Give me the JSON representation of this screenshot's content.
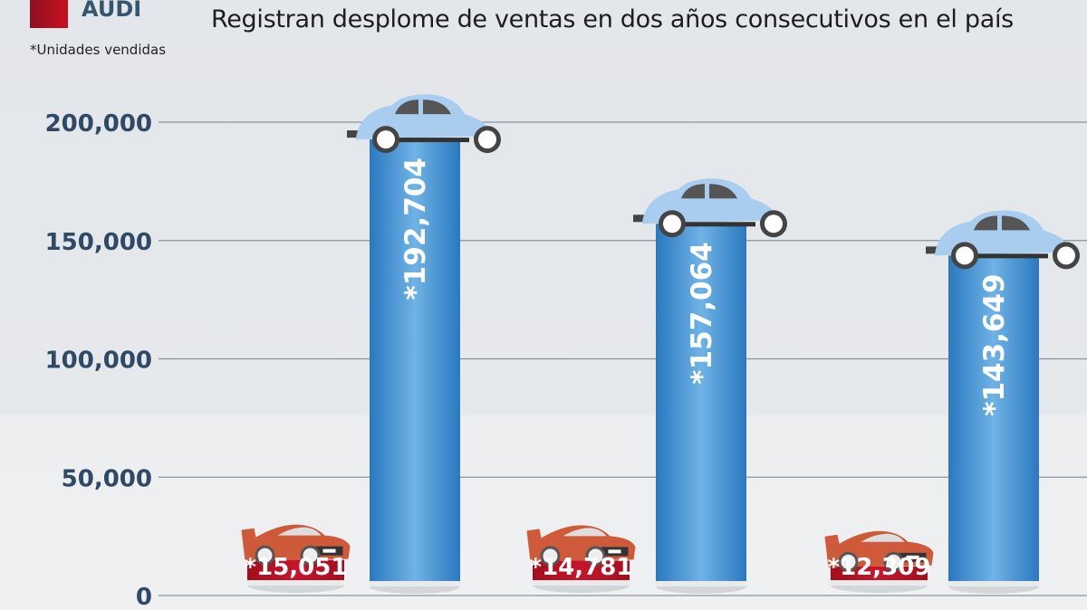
{
  "legend": {
    "label": "AUDI",
    "color": "#b5101e"
  },
  "footnote": "*Unidades vendidas",
  "subtitle": "Registran desplome de ventas en dos años consecutivos en el país",
  "chart_data": {
    "type": "bar",
    "title": "Registran desplome de ventas en dos años consecutivos en el país",
    "xlabel": "",
    "ylabel": "*Unidades vendidas",
    "ylim": [
      0,
      200000
    ],
    "yticks": [
      0,
      50000,
      100000,
      150000,
      200000
    ],
    "ytick_labels": [
      "0",
      "50,000",
      "100,000",
      "150,000",
      "200,000"
    ],
    "grid": true,
    "groups": 3,
    "series": [
      {
        "name": "AUDI",
        "color": "#b5101e",
        "values": [
          15051,
          14781,
          12309
        ],
        "labels": [
          "*15,051",
          "*14,781",
          "*12,309"
        ]
      },
      {
        "name": "",
        "color": "#3a8fd6",
        "values": [
          192704,
          157064,
          143649
        ],
        "labels": [
          "*192,704",
          "*157,064",
          "*143,649"
        ]
      }
    ]
  }
}
